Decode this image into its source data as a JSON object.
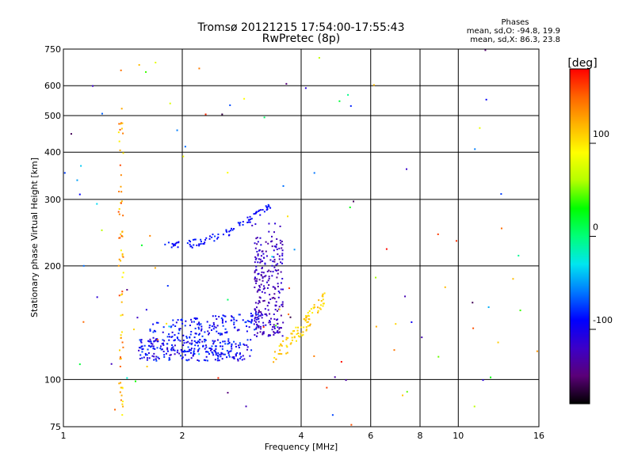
{
  "chart_data": {
    "type": "scatter",
    "title": "Tromsø 20121215 17:54:00-17:55:43",
    "subtitle": "RwPretec (8p)",
    "xlabel": "Frequency [MHz]",
    "ylabel": "Stationary phase Virtual Height [km]",
    "x_scale": "log",
    "y_scale": "log",
    "xlim": [
      1,
      16
    ],
    "ylim": [
      75,
      750
    ],
    "x_ticks": [
      1,
      2,
      4,
      6,
      8,
      10,
      16
    ],
    "y_ticks": [
      75,
      100,
      200,
      300,
      400,
      500,
      600,
      750
    ],
    "x_grid": [
      1,
      2,
      4,
      6,
      8,
      10,
      16
    ],
    "y_grid": [
      100,
      200,
      300,
      400,
      500,
      600
    ],
    "grid": true,
    "phases_panel": {
      "title": "Phases",
      "line_o": "mean, sd,O: -94.8, 19.9",
      "line_x": "mean, sd,X:  86.3, 23.8"
    },
    "colorbar": {
      "label": "[deg]",
      "range": [
        -180,
        180
      ],
      "ticks": [
        100,
        0,
        -100
      ],
      "colors": [
        "#000000",
        "#5a0078",
        "#3c00c8",
        "#0000ff",
        "#0078ff",
        "#00e6f0",
        "#00ff78",
        "#00ff00",
        "#b4ff00",
        "#ffff00",
        "#ffb400",
        "#ff6400",
        "#ff0000"
      ]
    },
    "traces": [
      {
        "name": "",
        "kind": "lower-band",
        "x_range": [
          1.55,
          3.0
        ],
        "h_range": [
          112,
          128
        ],
        "count": 260,
        "phase_range": [
          -120,
          -70
        ]
      },
      {
        "name": "",
        "kind": "lower-upper-band",
        "x_range": [
          1.65,
          3.2
        ],
        "h_range": [
          125,
          142
        ],
        "count": 160,
        "phase_range": [
          -110,
          -70
        ]
      },
      {
        "name": "",
        "kind": "cusp",
        "x_range": [
          3.05,
          3.6
        ],
        "h_range": [
          130,
          270
        ],
        "count": 260,
        "phase_range": [
          -140,
          -105
        ]
      },
      {
        "name": "",
        "kind": "upper-layer",
        "x_range": [
          1.8,
          3.35
        ],
        "h_range": [
          225,
          290
        ],
        "count": 90,
        "phase_range": [
          -100,
          -80
        ]
      },
      {
        "name": "",
        "kind": "x-trace",
        "x_range": [
          3.4,
          4.6
        ],
        "h_range": [
          115,
          165
        ],
        "count": 90,
        "phase_range": [
          95,
          125
        ]
      },
      {
        "name": "",
        "kind": "vertical-column",
        "x_range": [
          1.38,
          1.42
        ],
        "h_range": [
          80,
          530
        ],
        "count": 70,
        "phase_range": [
          90,
          160
        ]
      },
      {
        "name": "",
        "kind": "noise",
        "x_range": [
          1.0,
          16.0
        ],
        "h_range": [
          75,
          750
        ],
        "count": 110,
        "phase_range": [
          -180,
          180
        ]
      }
    ]
  }
}
